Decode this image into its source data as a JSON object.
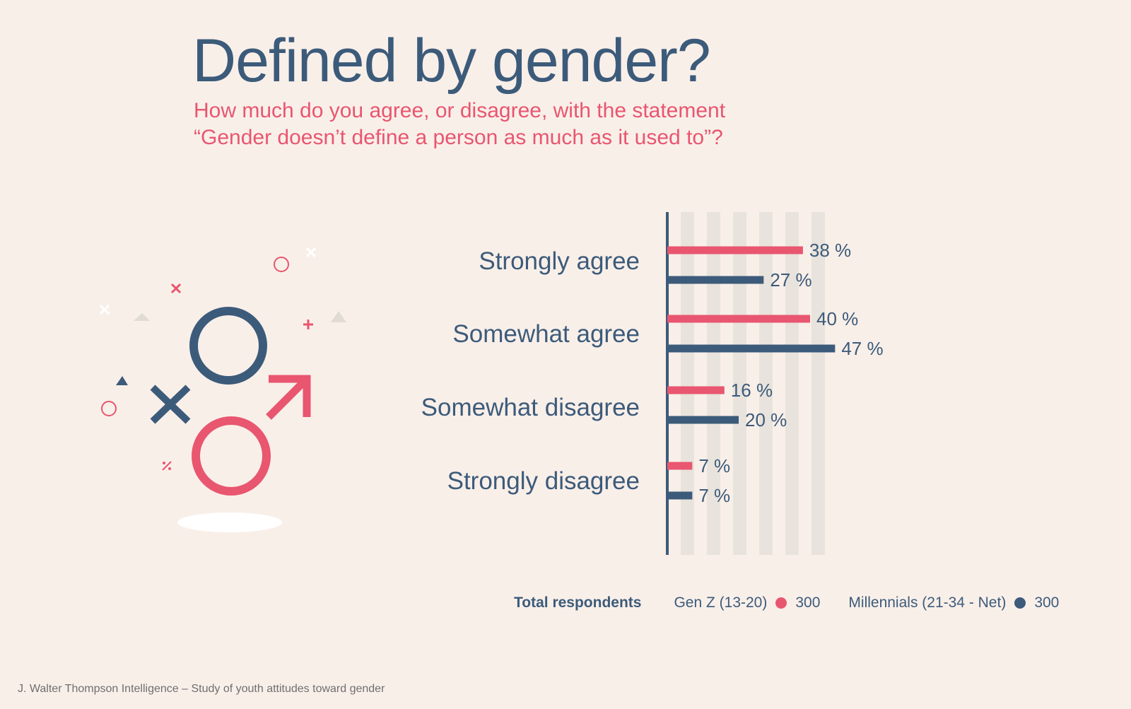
{
  "header": {
    "title": "Defined by gender?",
    "subtitle_line1": "How much do you agree, or disagree, with the statement",
    "subtitle_line2": "“Gender doesn’t define a person as much as it used to”?"
  },
  "colors": {
    "genz": "#e8566f",
    "millennials": "#3c5b7a",
    "stripe": "#e8e3dc",
    "background": "#f9efe9"
  },
  "chart_data": {
    "type": "bar",
    "orientation": "horizontal",
    "title": "Defined by gender?",
    "categories": [
      "Strongly agree",
      "Somewhat agree",
      "Somewhat disagree",
      "Strongly disagree"
    ],
    "series": [
      {
        "name": "Gen Z (13-20)",
        "values": [
          38,
          40,
          16,
          7
        ]
      },
      {
        "name": "Millennials (21-34 - Net)",
        "values": [
          27,
          47,
          20,
          7
        ]
      }
    ],
    "value_suffix": " %",
    "xlim": [
      0,
      50
    ],
    "grid": "vertical stripes"
  },
  "legend": {
    "total_label": "Total respondents",
    "items": [
      {
        "name": "Gen Z (13-20)",
        "count": "300"
      },
      {
        "name": "Millennials (21-34 - Net)",
        "count": "300"
      }
    ]
  },
  "footer": {
    "source": "J. Walter Thompson Intelligence – Study of youth attitudes toward gender"
  },
  "illustration": {
    "icons": [
      "female-symbol-icon",
      "male-symbol-icon",
      "cross-icon",
      "circle-icon",
      "triangle-icon",
      "plus-icon",
      "percent-icon"
    ]
  }
}
